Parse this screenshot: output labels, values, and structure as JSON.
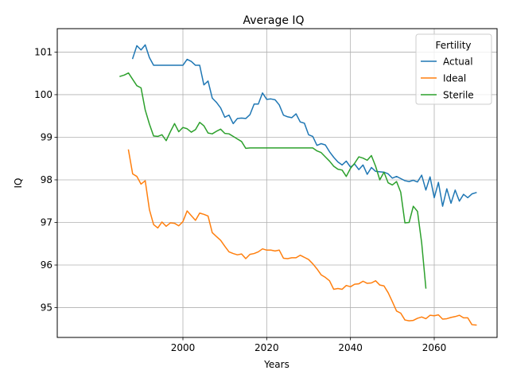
{
  "chart_data": {
    "type": "line",
    "title": "Average IQ",
    "xlabel": "Years",
    "ylabel": "IQ",
    "xlim": [
      1970,
      2075
    ],
    "ylim": [
      94.3,
      101.55
    ],
    "xticks": [
      2000,
      2020,
      2040,
      2060
    ],
    "yticks": [
      95,
      96,
      97,
      98,
      99,
      100,
      101
    ],
    "grid": true,
    "legend": {
      "title": "Fertility",
      "placement": "top-right"
    },
    "colors": {
      "Actual": "#1f77b4",
      "Ideal": "#ff7f0e",
      "Sterile": "#2ca02c"
    },
    "series": [
      {
        "name": "Actual",
        "x": [
          1988,
          1989,
          1990,
          1991,
          1992,
          1993,
          1994,
          1995,
          1996,
          1997,
          1998,
          1999,
          2000,
          2001,
          2002,
          2003,
          2004,
          2005,
          2006,
          2007,
          2008,
          2009,
          2010,
          2011,
          2012,
          2013,
          2014,
          2015,
          2016,
          2017,
          2018,
          2019,
          2020,
          2021,
          2022,
          2023,
          2024,
          2025,
          2026,
          2027,
          2028,
          2029,
          2030,
          2031,
          2032,
          2033,
          2034,
          2035,
          2036,
          2037,
          2038,
          2039,
          2040,
          2041,
          2042,
          2043,
          2044,
          2045,
          2046,
          2047,
          2048,
          2049,
          2050,
          2051,
          2052,
          2053,
          2054,
          2055,
          2056,
          2057,
          2058,
          2059,
          2060,
          2061,
          2062,
          2063,
          2064,
          2065,
          2066,
          2067,
          2068,
          2069,
          2070
        ],
        "values": [
          100.85,
          101.15,
          101.05,
          101.17,
          100.87,
          100.69,
          100.69,
          100.69,
          100.69,
          100.69,
          100.69,
          100.69,
          100.69,
          100.83,
          100.78,
          100.69,
          100.69,
          100.23,
          100.32,
          99.92,
          99.82,
          99.69,
          99.47,
          99.52,
          99.32,
          99.44,
          99.45,
          99.44,
          99.53,
          99.78,
          99.78,
          100.04,
          99.89,
          99.9,
          99.88,
          99.76,
          99.52,
          99.48,
          99.46,
          99.55,
          99.36,
          99.33,
          99.06,
          99.02,
          98.81,
          98.85,
          98.82,
          98.66,
          98.53,
          98.42,
          98.35,
          98.44,
          98.3,
          98.37,
          98.24,
          98.35,
          98.13,
          98.29,
          98.2,
          98.19,
          98.18,
          98.14,
          98.04,
          98.08,
          98.03,
          97.98,
          97.96,
          97.99,
          97.95,
          98.11,
          97.76,
          98.07,
          97.58,
          97.94,
          97.38,
          97.79,
          97.45,
          97.76,
          97.5,
          97.66,
          97.58,
          97.67,
          97.7
        ]
      },
      {
        "name": "Ideal",
        "x": [
          1987,
          1988,
          1989,
          1990,
          1991,
          1992,
          1993,
          1994,
          1995,
          1996,
          1997,
          1998,
          1999,
          2000,
          2001,
          2002,
          2003,
          2004,
          2005,
          2006,
          2007,
          2008,
          2009,
          2010,
          2011,
          2012,
          2013,
          2014,
          2015,
          2016,
          2017,
          2018,
          2019,
          2020,
          2021,
          2022,
          2023,
          2024,
          2025,
          2026,
          2027,
          2028,
          2029,
          2030,
          2031,
          2032,
          2033,
          2034,
          2035,
          2036,
          2037,
          2038,
          2039,
          2040,
          2041,
          2042,
          2043,
          2044,
          2045,
          2046,
          2047,
          2048,
          2049,
          2050,
          2051,
          2052,
          2053,
          2054,
          2055,
          2056,
          2057,
          2058,
          2059,
          2060,
          2061,
          2062,
          2063,
          2064,
          2065,
          2066,
          2067,
          2068,
          2069,
          2070
        ],
        "values": [
          98.7,
          98.14,
          98.08,
          97.9,
          97.98,
          97.3,
          96.95,
          96.87,
          97.01,
          96.91,
          96.99,
          96.98,
          96.92,
          97.02,
          97.27,
          97.16,
          97.05,
          97.22,
          97.19,
          97.15,
          96.76,
          96.67,
          96.58,
          96.44,
          96.31,
          96.27,
          96.24,
          96.26,
          96.15,
          96.25,
          96.27,
          96.31,
          96.38,
          96.35,
          96.35,
          96.33,
          96.35,
          96.16,
          96.15,
          96.17,
          96.17,
          96.23,
          96.18,
          96.13,
          96.03,
          95.91,
          95.77,
          95.71,
          95.63,
          95.43,
          95.45,
          95.43,
          95.52,
          95.49,
          95.55,
          95.56,
          95.62,
          95.57,
          95.58,
          95.63,
          95.53,
          95.51,
          95.35,
          95.14,
          94.92,
          94.87,
          94.71,
          94.69,
          94.7,
          94.75,
          94.78,
          94.74,
          94.82,
          94.81,
          94.83,
          94.73,
          94.74,
          94.77,
          94.79,
          94.82,
          94.76,
          94.76,
          94.6,
          94.59
        ]
      },
      {
        "name": "Sterile",
        "x": [
          1985,
          1986,
          1987,
          1988,
          1989,
          1990,
          1991,
          1992,
          1993,
          1994,
          1995,
          1996,
          1997,
          1998,
          1999,
          2000,
          2001,
          2002,
          2003,
          2004,
          2005,
          2006,
          2007,
          2008,
          2009,
          2010,
          2011,
          2012,
          2013,
          2014,
          2015,
          2016,
          2017,
          2018,
          2019,
          2020,
          2021,
          2022,
          2023,
          2024,
          2025,
          2026,
          2027,
          2028,
          2029,
          2030,
          2031,
          2032,
          2033,
          2034,
          2035,
          2036,
          2037,
          2038,
          2039,
          2040,
          2041,
          2042,
          2043,
          2044,
          2045,
          2046,
          2047,
          2048,
          2049,
          2050,
          2051,
          2052,
          2053,
          2054,
          2055,
          2056,
          2057,
          2058
        ],
        "values": [
          100.43,
          100.46,
          100.51,
          100.36,
          100.21,
          100.16,
          99.64,
          99.31,
          99.03,
          99.02,
          99.06,
          98.92,
          99.13,
          99.32,
          99.13,
          99.23,
          99.2,
          99.12,
          99.18,
          99.35,
          99.27,
          99.1,
          99.08,
          99.14,
          99.19,
          99.09,
          99.08,
          99.02,
          98.96,
          98.9,
          98.74,
          98.75,
          98.75,
          98.75,
          98.75,
          98.75,
          98.75,
          98.75,
          98.75,
          98.75,
          98.75,
          98.75,
          98.75,
          98.75,
          98.75,
          98.75,
          98.75,
          98.68,
          98.64,
          98.54,
          98.44,
          98.32,
          98.25,
          98.23,
          98.08,
          98.27,
          98.39,
          98.54,
          98.51,
          98.46,
          98.57,
          98.32,
          98.0,
          98.18,
          97.93,
          97.88,
          97.96,
          97.71,
          96.99,
          97.0,
          97.38,
          97.26,
          96.52,
          95.46
        ]
      }
    ]
  }
}
